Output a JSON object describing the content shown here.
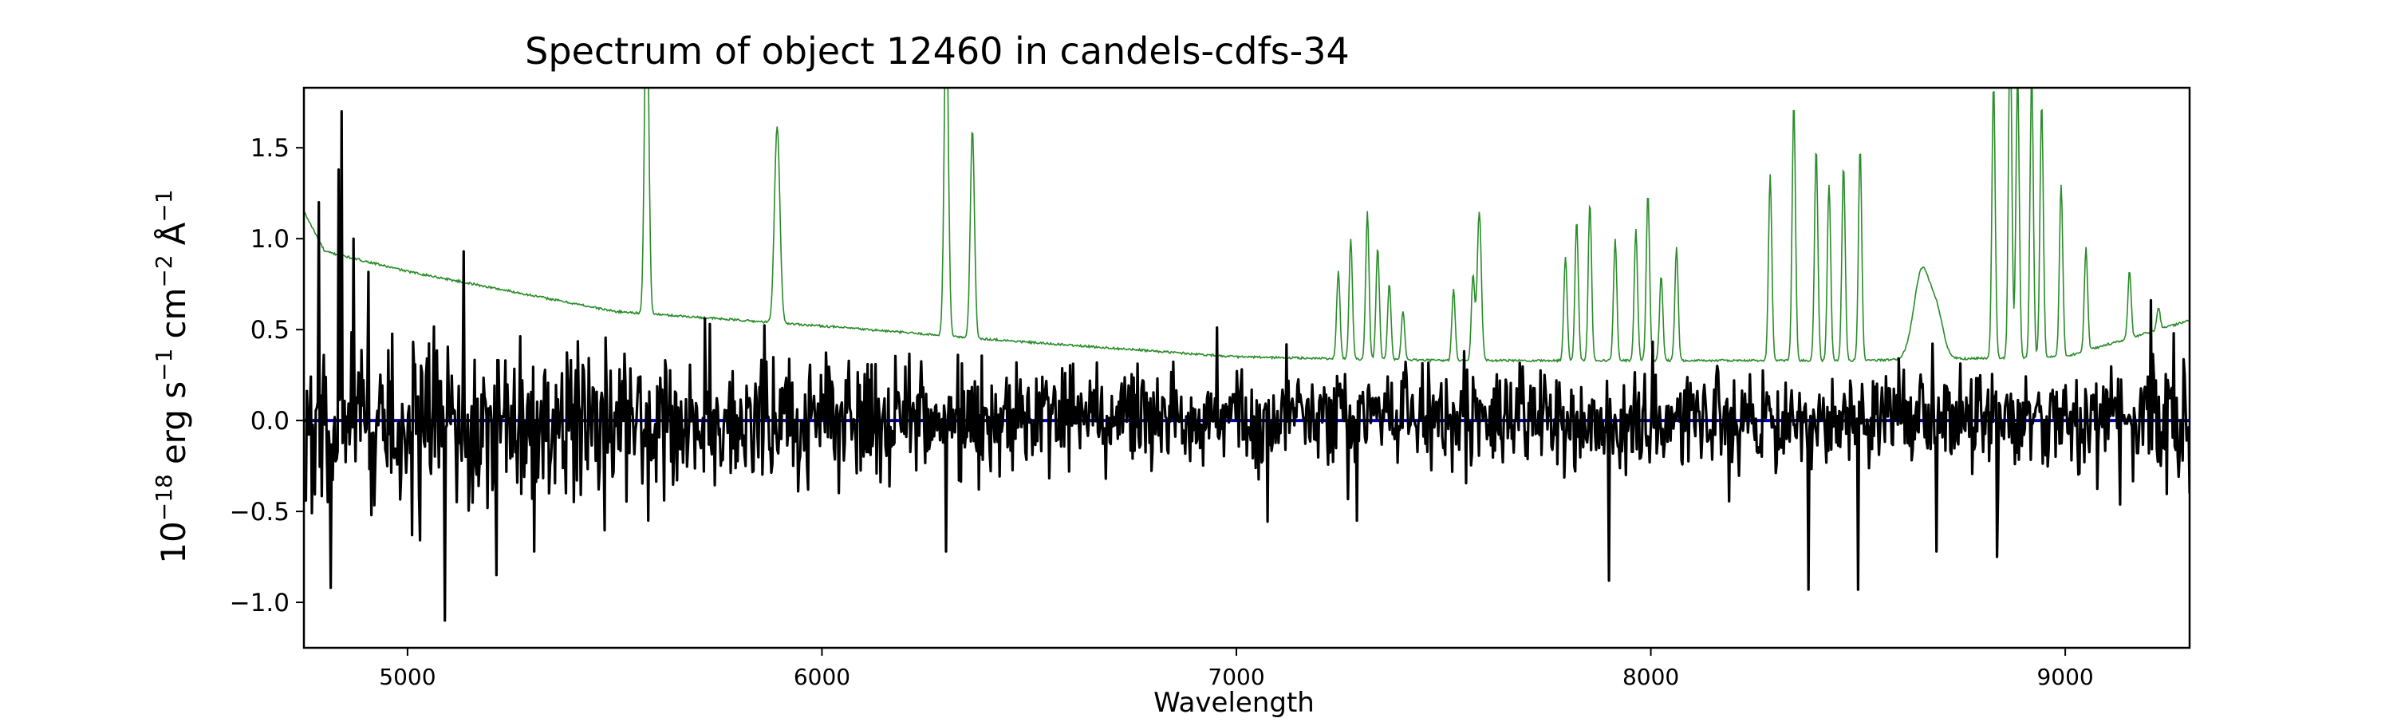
{
  "chart_data": {
    "type": "line",
    "title": "Spectrum of object 12460 in candels-cdfs-34",
    "xlabel": "Wavelength",
    "ylabel": {
      "base": "10",
      "exp": "−18",
      "unit_erg": "erg s",
      "exp_s": "−1",
      "unit_cm": "cm",
      "exp_cm": "−2",
      "unit_ang": "Å",
      "exp_ang": "−1"
    },
    "xlim": [
      4750,
      9300
    ],
    "ylim": [
      -1.25,
      1.83
    ],
    "xticks": [
      5000,
      6000,
      7000,
      8000,
      9000
    ],
    "xtick_labels": [
      "5000",
      "6000",
      "7000",
      "8000",
      "9000"
    ],
    "yticks": [
      -1.0,
      -0.5,
      0.0,
      0.5,
      1.0,
      1.5
    ],
    "ytick_labels": [
      "−1.0",
      "−0.5",
      "0.0",
      "0.5",
      "1.0",
      "1.5"
    ],
    "grid": false,
    "series": [
      {
        "role": "noise",
        "color": "#2a8c2a",
        "continuum": [
          [
            4750,
            1.15
          ],
          [
            4800,
            0.93
          ],
          [
            5000,
            0.82
          ],
          [
            5500,
            0.6
          ],
          [
            6000,
            0.52
          ],
          [
            6500,
            0.43
          ],
          [
            7000,
            0.35
          ],
          [
            7500,
            0.33
          ],
          [
            8000,
            0.33
          ],
          [
            8500,
            0.33
          ],
          [
            9000,
            0.35
          ],
          [
            9300,
            0.55
          ]
        ],
        "lines": [
          [
            5577,
            2.5,
            5
          ],
          [
            6300,
            2.3,
            5
          ],
          [
            6363,
            1.6,
            5
          ],
          [
            5890,
            1.25,
            6
          ],
          [
            5895,
            1.0,
            6
          ],
          [
            7246,
            0.82,
            4
          ],
          [
            7276,
            1.0,
            4
          ],
          [
            7316,
            1.15,
            4
          ],
          [
            7341,
            0.95,
            4
          ],
          [
            7369,
            0.75,
            4
          ],
          [
            7402,
            0.6,
            4
          ],
          [
            7524,
            0.72,
            4
          ],
          [
            7571,
            0.8,
            4
          ],
          [
            7586,
            1.15,
            5
          ],
          [
            7794,
            0.9,
            4
          ],
          [
            7821,
            1.1,
            4
          ],
          [
            7853,
            1.2,
            4
          ],
          [
            7914,
            1.0,
            4
          ],
          [
            7964,
            1.05,
            4
          ],
          [
            7993,
            1.25,
            4
          ],
          [
            8025,
            0.8,
            4
          ],
          [
            8062,
            0.95,
            4
          ],
          [
            8288,
            1.35,
            4
          ],
          [
            8345,
            1.75,
            4
          ],
          [
            8399,
            1.5,
            4
          ],
          [
            8430,
            1.3,
            4
          ],
          [
            8465,
            1.4,
            4
          ],
          [
            8505,
            1.5,
            4
          ],
          [
            8827,
            1.85,
            4
          ],
          [
            8867,
            2.2,
            4
          ],
          [
            8885,
            1.9,
            4
          ],
          [
            8919,
            1.9,
            4
          ],
          [
            8943,
            1.75,
            4
          ],
          [
            8990,
            1.3,
            4
          ],
          [
            9050,
            0.95,
            4
          ],
          [
            9155,
            0.82,
            4
          ],
          [
            9225,
            0.62,
            4
          ],
          [
            8655,
            0.83,
            20
          ],
          [
            8692,
            0.55,
            15
          ]
        ]
      },
      {
        "role": "model",
        "color": "#0000b4",
        "y": 0.0
      },
      {
        "role": "flux",
        "color": "#000000",
        "seed": 12460,
        "points": 1900,
        "spikes": [
          [
            4785,
            1.2
          ],
          [
            4815,
            -0.92
          ],
          [
            4835,
            1.38
          ],
          [
            4842,
            1.7
          ],
          [
            4870,
            1.0
          ],
          [
            4912,
            -0.52
          ],
          [
            5010,
            -0.63
          ],
          [
            5090,
            -1.1
          ],
          [
            5135,
            0.93
          ],
          [
            5215,
            -0.85
          ],
          [
            5305,
            -0.72
          ],
          [
            5580,
            -0.55
          ],
          [
            6300,
            -0.72
          ],
          [
            7290,
            -0.55
          ],
          [
            7900,
            -0.88
          ],
          [
            8380,
            -0.93
          ],
          [
            8500,
            -0.93
          ],
          [
            8690,
            -0.72
          ],
          [
            8835,
            -0.75
          ],
          [
            9262,
            0.48
          ]
        ]
      }
    ]
  }
}
